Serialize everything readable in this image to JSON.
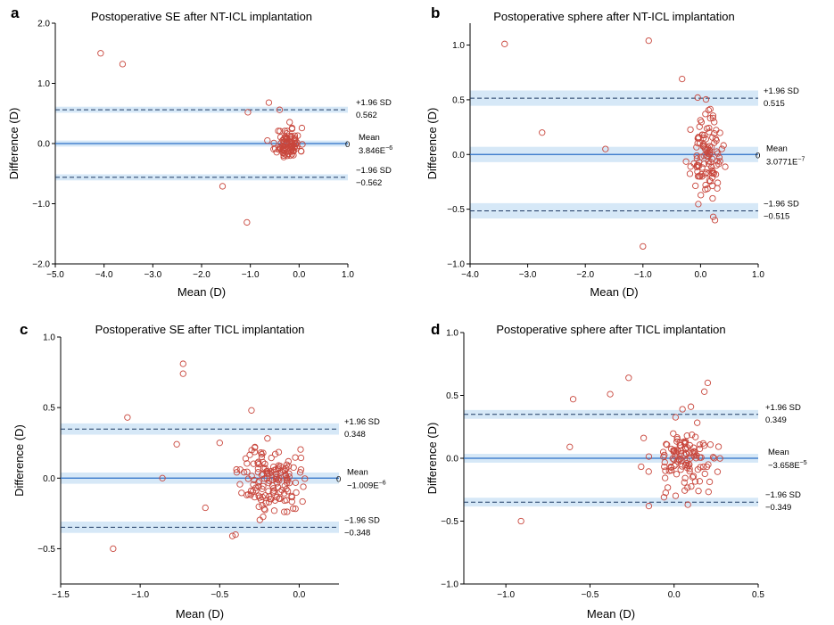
{
  "chart_data": [
    {
      "type": "scatter",
      "panel_letter": "a",
      "title": "Postoperative SE after NT-ICL implantation",
      "xlabel": "Mean (D)",
      "ylabel": "Difference (D)",
      "xlim": [
        -5.0,
        1.0
      ],
      "ylim": [
        -2.0,
        2.0
      ],
      "xticks": [
        -5.0,
        -4.0,
        -3.0,
        -2.0,
        -1.0,
        0.0,
        1.0
      ],
      "xtick_labels": [
        "−5.0",
        "−4.0",
        "−3.0",
        "−2.0",
        "−1.0",
        "0.0",
        "1.0"
      ],
      "yticks": [
        -2.0,
        -1.0,
        0.0,
        1.0,
        2.0
      ],
      "ytick_labels": [
        "−2.0",
        "−1.0",
        "0.0",
        "1.0",
        "2.0"
      ],
      "mean_value": 0,
      "upper_loa": 0.562,
      "lower_loa": -0.562,
      "ci_halfwidth": 0.05,
      "zero_label": "0",
      "annotations": {
        "upper_label": "+1.96 SD",
        "upper_value": "0.562",
        "mean_label": "Mean",
        "mean_value_text": "3.846E",
        "mean_exp": "−6",
        "lower_label": "−1.96 SD",
        "lower_value": "−0.562"
      },
      "outliers": [
        [
          -4.07,
          1.5
        ],
        [
          -3.62,
          1.32
        ],
        [
          -0.62,
          0.68
        ],
        [
          -0.4,
          0.56
        ],
        [
          -1.05,
          0.52
        ],
        [
          -1.57,
          -0.71
        ],
        [
          -1.07,
          -1.31
        ],
        [
          -0.65,
          0.05
        ]
      ],
      "cluster": {
        "cx": -0.22,
        "sx": 0.12,
        "cy": 0.0,
        "sy": 0.13,
        "n": 95,
        "seed": 11
      }
    },
    {
      "type": "scatter",
      "panel_letter": "b",
      "title": "Postoperative sphere after NT-ICL implantation",
      "xlabel": "Mean (D)",
      "ylabel": "Difference (D)",
      "xlim": [
        -4.0,
        1.0
      ],
      "ylim": [
        -1.0,
        1.2
      ],
      "xticks": [
        -4.0,
        -3.0,
        -2.0,
        -1.0,
        0.0,
        1.0
      ],
      "xtick_labels": [
        "−4.0",
        "−3.0",
        "−2.0",
        "−1.0",
        "0.0",
        "1.0"
      ],
      "yticks": [
        -1.0,
        -0.5,
        0.0,
        0.5,
        1.0
      ],
      "ytick_labels": [
        "−1.0",
        "−0.5",
        "0.0",
        "0.5",
        "1.0"
      ],
      "mean_value": 0,
      "upper_loa": 0.515,
      "lower_loa": -0.515,
      "ci_halfwidth": 0.07,
      "zero_label": "0",
      "annotations": {
        "upper_label": "+1.96 SD",
        "upper_value": "0.515",
        "mean_label": "Mean",
        "mean_value_text": "3.0771E",
        "mean_exp": "−7",
        "lower_label": "−1.96 SD",
        "lower_value": "−0.515"
      },
      "outliers": [
        [
          -3.4,
          1.01
        ],
        [
          -0.9,
          1.04
        ],
        [
          -0.32,
          0.69
        ],
        [
          -2.75,
          0.2
        ],
        [
          -1.65,
          0.05
        ],
        [
          -1.0,
          -0.84
        ],
        [
          -0.05,
          0.52
        ],
        [
          0.25,
          -0.6
        ],
        [
          0.22,
          -0.57
        ]
      ],
      "cluster": {
        "cx": 0.1,
        "sx": 0.13,
        "cy": -0.02,
        "sy": 0.17,
        "n": 110,
        "seed": 23
      }
    },
    {
      "type": "scatter",
      "panel_letter": "c",
      "title": "Postoperative SE after TICL implantation",
      "xlabel": "Mean (D)",
      "ylabel": "Difference (D)",
      "xlim": [
        -1.5,
        0.25
      ],
      "ylim": [
        -0.75,
        1.0
      ],
      "xticks": [
        -1.5,
        -1.0,
        -0.5,
        0.0
      ],
      "xtick_labels": [
        "−1.5",
        "−1.0",
        "−0.5",
        "0.0"
      ],
      "yticks": [
        -0.5,
        0.0,
        0.5,
        1.0
      ],
      "ytick_labels": [
        "−0.5",
        "0.0",
        "0.5",
        "1.0"
      ],
      "mean_value": 0,
      "upper_loa": 0.348,
      "lower_loa": -0.348,
      "ci_halfwidth": 0.04,
      "zero_label": "0",
      "annotations": {
        "upper_label": "+1.96 SD",
        "upper_value": "0.348",
        "mean_label": "Mean",
        "mean_value_text": "−1.009E",
        "mean_exp": "−6",
        "lower_label": "−1.96 SD",
        "lower_value": "−0.348"
      },
      "outliers": [
        [
          -0.73,
          0.81
        ],
        [
          -0.73,
          0.74
        ],
        [
          -1.08,
          0.43
        ],
        [
          -0.77,
          0.24
        ],
        [
          -0.5,
          0.25
        ],
        [
          -0.86,
          0.0
        ],
        [
          -1.17,
          -0.5
        ],
        [
          -0.42,
          -0.41
        ],
        [
          -0.4,
          -0.4
        ],
        [
          -0.3,
          0.48
        ],
        [
          -0.59,
          -0.21
        ]
      ],
      "cluster": {
        "cx": -0.18,
        "sx": 0.09,
        "cy": -0.01,
        "sy": 0.12,
        "n": 150,
        "seed": 37
      }
    },
    {
      "type": "scatter",
      "panel_letter": "d",
      "title": "Postoperative sphere after TICL implantation",
      "xlabel": "Mean (D)",
      "ylabel": "Difference (D)",
      "xlim": [
        -1.25,
        0.5
      ],
      "ylim": [
        -1.0,
        1.0
      ],
      "xticks": [
        -1.0,
        -0.5,
        0.0,
        0.5
      ],
      "xtick_labels": [
        "−1.0",
        "−0.5",
        "0.0",
        "0.5"
      ],
      "yticks": [
        -1.0,
        -0.5,
        0.0,
        0.5,
        1.0
      ],
      "ytick_labels": [
        "−1.0",
        "−0.5",
        "0.0",
        "0.5",
        "1.0"
      ],
      "mean_value": 0,
      "upper_loa": 0.349,
      "lower_loa": -0.349,
      "ci_halfwidth": 0.035,
      "zero_label": "",
      "annotations": {
        "upper_label": "+1.96 SD",
        "upper_value": "0.349",
        "mean_label": "Mean",
        "mean_value_text": "−3.658E",
        "mean_exp": "−5",
        "lower_label": "−1.96 SD",
        "lower_value": "−0.349"
      },
      "outliers": [
        [
          -0.27,
          0.64
        ],
        [
          -0.38,
          0.51
        ],
        [
          -0.6,
          0.47
        ],
        [
          -0.91,
          -0.5
        ],
        [
          -0.62,
          0.09
        ],
        [
          0.2,
          0.6
        ],
        [
          0.18,
          0.53
        ],
        [
          -0.15,
          -0.38
        ],
        [
          0.1,
          0.41
        ],
        [
          0.05,
          0.39
        ]
      ],
      "cluster": {
        "cx": 0.07,
        "sx": 0.1,
        "cy": 0.0,
        "sy": 0.13,
        "n": 120,
        "seed": 53
      }
    }
  ],
  "style": {
    "marker_color": "#c8463c",
    "mean_line_color": "#2a6fc7",
    "ci_band_color": "#d6e8f7",
    "loa_line_color": "#1f3a63"
  }
}
